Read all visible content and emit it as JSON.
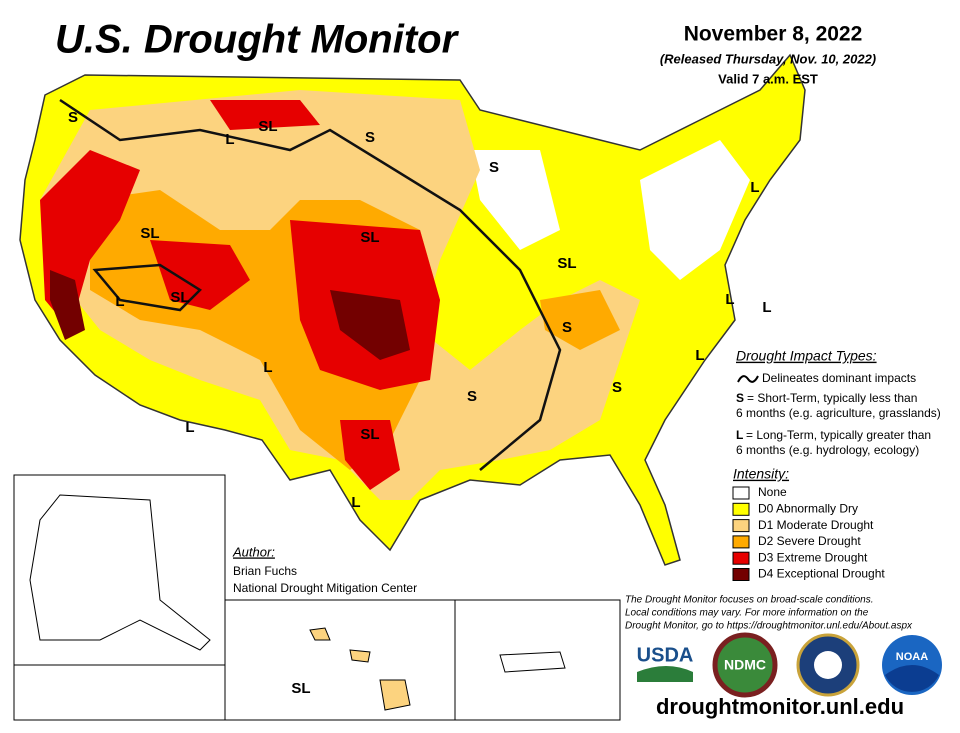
{
  "header": {
    "title": "U.S. Drought Monitor",
    "date": "November 8, 2022",
    "released": "(Released Thursday, Nov. 10, 2022)",
    "valid": "Valid 7 a.m. EST"
  },
  "map_labels": [
    "S",
    "SL",
    "L",
    "S",
    "S",
    "SL",
    "SL",
    "L",
    "SL",
    "L",
    "L",
    "SL",
    "S",
    "S",
    "L",
    "L",
    "S",
    "L",
    "SL",
    "L",
    "L",
    "SL"
  ],
  "impact_legend": {
    "title": "Drought Impact Types:",
    "line": "Delineates dominant impacts",
    "short_key": "S",
    "short_text": [
      "= Short-Term, typically less than",
      "6 months (e.g. agriculture, grasslands)"
    ],
    "long_key": "L",
    "long_text": [
      "= Long-Term, typically greater than",
      "6 months (e.g. hydrology, ecology)"
    ]
  },
  "intensity": {
    "title": "Intensity:",
    "items": [
      {
        "name": "None",
        "color": "#ffffff"
      },
      {
        "name": "D0 Abnormally Dry",
        "color": "#ffff00"
      },
      {
        "name": "D1 Moderate Drought",
        "color": "#fcd37f"
      },
      {
        "name": "D2 Severe Drought",
        "color": "#ffaa00"
      },
      {
        "name": "D3 Extreme Drought",
        "color": "#e60000"
      },
      {
        "name": "D4 Exceptional Drought",
        "color": "#730000"
      }
    ]
  },
  "author": {
    "label": "Author:",
    "name": "Brian Fuchs",
    "org": "National Drought Mitigation Center"
  },
  "footnote": [
    "The Drought Monitor focuses on broad-scale conditions.",
    "Local conditions may vary. For more information on the",
    "Drought Monitor, go to https://droughtmonitor.unl.edu/About.aspx"
  ],
  "logos": [
    "USDA",
    "NDMC",
    "NOAA"
  ],
  "url": "droughtmonitor.unl.edu"
}
